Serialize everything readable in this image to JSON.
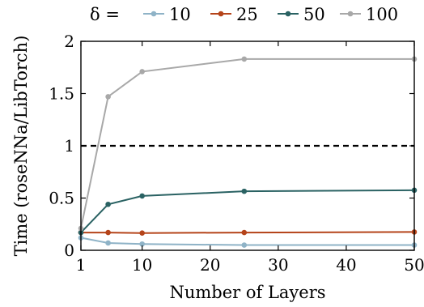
{
  "chart_data": {
    "type": "line",
    "xlabel": "Number of Layers",
    "ylabel": "Time (roseNNa/LibTorch)",
    "xlim": [
      1,
      50
    ],
    "ylim": [
      0,
      2
    ],
    "x_ticks": [
      1,
      10,
      20,
      30,
      40,
      50
    ],
    "y_ticks": [
      0,
      0.5,
      1,
      1.5,
      2
    ],
    "x_tick_labels": [
      "1",
      "10",
      "20",
      "30",
      "40",
      "50"
    ],
    "y_tick_labels": [
      "0",
      "0.5",
      "1",
      "1.5",
      "2"
    ],
    "grid": false,
    "legend_title": "δ =",
    "legend_position": "top",
    "x": [
      1,
      5,
      10,
      25,
      50
    ],
    "series": [
      {
        "name": "10",
        "color": "#8fb3c7",
        "values": [
          0.12,
          0.07,
          0.06,
          0.05,
          0.05
        ]
      },
      {
        "name": "25",
        "color": "#b5441a",
        "values": [
          0.17,
          0.17,
          0.165,
          0.17,
          0.175
        ]
      },
      {
        "name": "50",
        "color": "#2a6263",
        "values": [
          0.17,
          0.44,
          0.52,
          0.565,
          0.575
        ]
      },
      {
        "name": "100",
        "color": "#a8a8a8",
        "values": [
          0.21,
          1.47,
          1.71,
          1.83,
          1.83
        ]
      }
    ],
    "reference_line": {
      "y": 1,
      "style": "dashed",
      "color": "#000000"
    }
  }
}
